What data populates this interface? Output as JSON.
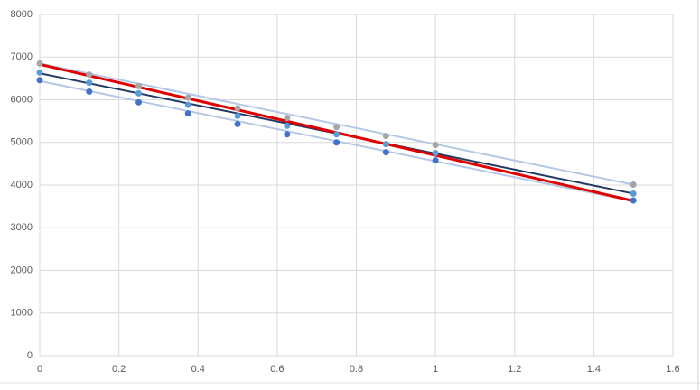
{
  "chart_data": {
    "type": "scatter",
    "xlim": [
      0,
      1.6
    ],
    "xticks": [
      0,
      0.2,
      0.4,
      0.6,
      0.8,
      1,
      1.2,
      1.4,
      1.6
    ],
    "ylim": [
      0,
      8000
    ],
    "yticks": [
      0,
      1000,
      2000,
      3000,
      4000,
      5000,
      6000,
      7000,
      8000
    ],
    "grid": true,
    "x": [
      0,
      0.125,
      0.25,
      0.375,
      0.5,
      0.625,
      0.75,
      0.875,
      1,
      1.5
    ],
    "series": [
      {
        "color": "#a5a5a5",
        "values": [
          6850,
          6590,
          6320,
          6050,
          5800,
          5570,
          5360,
          5150,
          4940,
          4010
        ]
      },
      {
        "color": "#5b9bd5",
        "values": [
          6640,
          6400,
          6150,
          5880,
          5620,
          5390,
          5190,
          4960,
          4750,
          3800
        ]
      },
      {
        "color": "#4472c4",
        "values": [
          6460,
          6190,
          5940,
          5680,
          5430,
          5190,
          5000,
          4770,
          4580,
          3640
        ]
      }
    ],
    "lines": [
      {
        "color": "#b4c7e7",
        "x": [
          0,
          1.5
        ],
        "values": [
          6850,
          4010
        ]
      },
      {
        "color": "#b4c7e7",
        "x": [
          0,
          1.5
        ],
        "values": [
          6440,
          3620
        ]
      },
      {
        "color": "#203864",
        "x": [
          0,
          1.5
        ],
        "values": [
          6620,
          3800
        ]
      },
      {
        "color": "#e00000",
        "x": [
          0,
          1.5
        ],
        "values": [
          6830,
          3630
        ]
      }
    ]
  }
}
